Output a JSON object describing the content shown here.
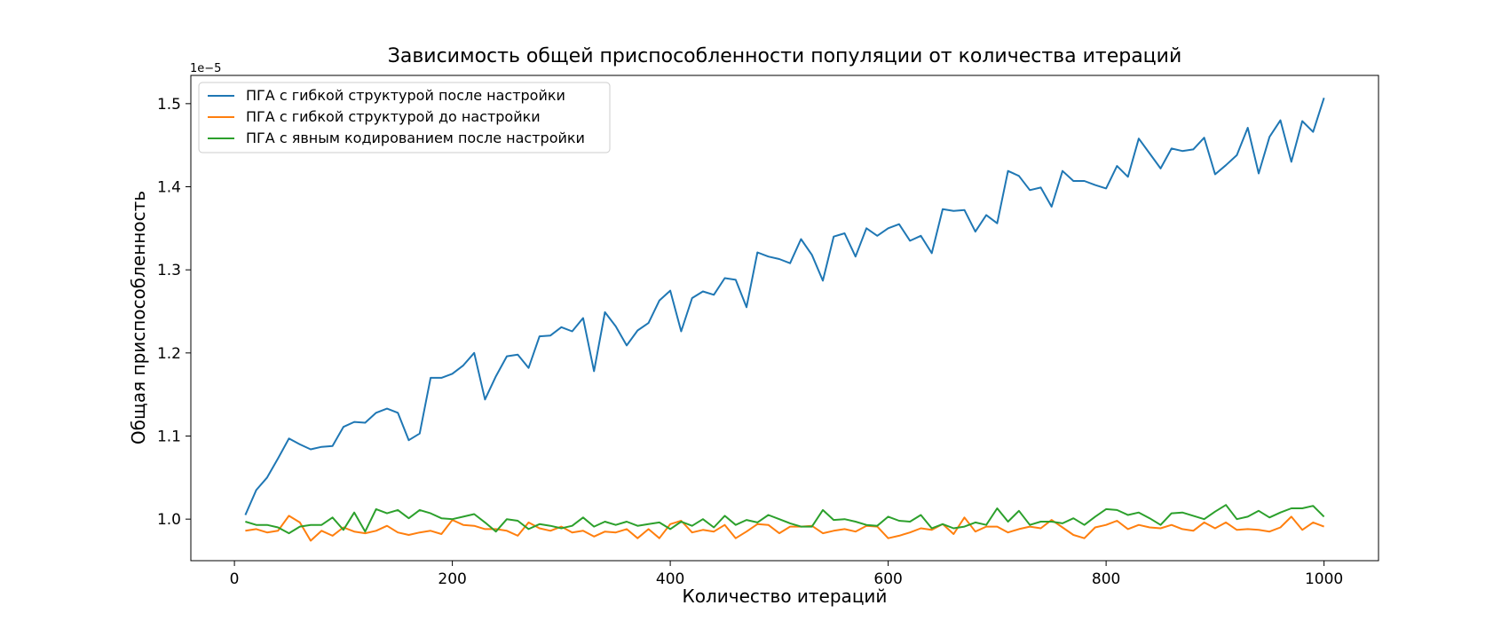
{
  "chart_data": {
    "type": "line",
    "title": "Зависимость общей приспособленности популяции от количества итераций",
    "xlabel": "Количество итераций",
    "ylabel": "Общая приспособленность",
    "y_offset_label": "1e−5",
    "y_scale": 1e-05,
    "xlim": [
      -40,
      1050
    ],
    "ylim": [
      0.95,
      1.534
    ],
    "xticks": [
      0,
      200,
      400,
      600,
      800,
      1000
    ],
    "xtick_labels": [
      "0",
      "200",
      "400",
      "600",
      "800",
      "1000"
    ],
    "yticks": [
      1.0,
      1.1,
      1.2,
      1.3,
      1.4,
      1.5
    ],
    "ytick_labels": [
      "1.0",
      "1.1",
      "1.2",
      "1.3",
      "1.4",
      "1.5"
    ],
    "grid": false,
    "legend_position": "upper-left",
    "x": [
      10,
      20,
      30,
      40,
      50,
      60,
      70,
      80,
      90,
      100,
      110,
      120,
      130,
      140,
      150,
      160,
      170,
      180,
      190,
      200,
      210,
      220,
      230,
      240,
      250,
      260,
      270,
      280,
      290,
      300,
      310,
      320,
      330,
      340,
      350,
      360,
      370,
      380,
      390,
      400,
      410,
      420,
      430,
      440,
      450,
      460,
      470,
      480,
      490,
      500,
      510,
      520,
      530,
      540,
      550,
      560,
      570,
      580,
      590,
      600,
      610,
      620,
      630,
      640,
      650,
      660,
      670,
      680,
      690,
      700,
      710,
      720,
      730,
      740,
      750,
      760,
      770,
      780,
      790,
      800,
      810,
      820,
      830,
      840,
      850,
      860,
      870,
      880,
      890,
      900,
      910,
      920,
      930,
      940,
      950,
      960,
      970,
      980,
      990,
      1000
    ],
    "series": [
      {
        "name": "ПГА с гибкой структурой после настройки",
        "color": "#1f77b4",
        "values": [
          1.005,
          1.035,
          1.05,
          1.073,
          1.097,
          1.09,
          1.084,
          1.087,
          1.088,
          1.111,
          1.117,
          1.116,
          1.128,
          1.133,
          1.128,
          1.095,
          1.103,
          1.17,
          1.17,
          1.175,
          1.185,
          1.2,
          1.144,
          1.172,
          1.196,
          1.198,
          1.182,
          1.22,
          1.221,
          1.231,
          1.226,
          1.242,
          1.178,
          1.249,
          1.232,
          1.209,
          1.227,
          1.236,
          1.263,
          1.275,
          1.226,
          1.266,
          1.274,
          1.27,
          1.29,
          1.288,
          1.255,
          1.321,
          1.316,
          1.313,
          1.308,
          1.337,
          1.318,
          1.287,
          1.34,
          1.344,
          1.316,
          1.35,
          1.341,
          1.35,
          1.355,
          1.335,
          1.341,
          1.32,
          1.373,
          1.371,
          1.372,
          1.346,
          1.366,
          1.356,
          1.419,
          1.413,
          1.396,
          1.399,
          1.376,
          1.419,
          1.407,
          1.407,
          1.402,
          1.398,
          1.425,
          1.412,
          1.458,
          1.44,
          1.422,
          1.446,
          1.443,
          1.445,
          1.459,
          1.415,
          1.426,
          1.438,
          1.471,
          1.416,
          1.46,
          1.48,
          1.43,
          1.479,
          1.466,
          1.507
        ]
      },
      {
        "name": "ПГА с гибкой структурой до настройки",
        "color": "#ff7f0e",
        "values": [
          0.986,
          0.988,
          0.984,
          0.986,
          1.004,
          0.996,
          0.974,
          0.986,
          0.98,
          0.99,
          0.985,
          0.983,
          0.986,
          0.992,
          0.984,
          0.981,
          0.984,
          0.986,
          0.982,
          0.999,
          0.993,
          0.992,
          0.988,
          0.988,
          0.986,
          0.98,
          0.996,
          0.989,
          0.986,
          0.991,
          0.984,
          0.986,
          0.979,
          0.985,
          0.984,
          0.988,
          0.977,
          0.988,
          0.977,
          0.994,
          0.998,
          0.984,
          0.987,
          0.985,
          0.993,
          0.977,
          0.985,
          0.994,
          0.993,
          0.983,
          0.991,
          0.991,
          0.992,
          0.983,
          0.986,
          0.988,
          0.985,
          0.992,
          0.991,
          0.977,
          0.98,
          0.984,
          0.989,
          0.987,
          0.994,
          0.982,
          1.002,
          0.985,
          0.991,
          0.991,
          0.984,
          0.988,
          0.991,
          0.989,
          0.999,
          0.99,
          0.981,
          0.977,
          0.99,
          0.993,
          0.998,
          0.988,
          0.993,
          0.99,
          0.989,
          0.993,
          0.988,
          0.986,
          0.996,
          0.989,
          0.996,
          0.987,
          0.988,
          0.987,
          0.985,
          0.99,
          1.003,
          0.987,
          0.996,
          0.991
        ]
      },
      {
        "name": "ПГА с явным кодированием после настройки",
        "color": "#2ca02c",
        "values": [
          0.997,
          0.993,
          0.993,
          0.99,
          0.983,
          0.991,
          0.993,
          0.993,
          1.002,
          0.987,
          1.008,
          0.985,
          1.012,
          1.007,
          1.011,
          1.001,
          1.011,
          1.007,
          1.001,
          1.0,
          1.003,
          1.006,
          0.996,
          0.985,
          1.0,
          0.998,
          0.988,
          0.994,
          0.992,
          0.989,
          0.992,
          1.002,
          0.991,
          0.997,
          0.993,
          0.997,
          0.992,
          0.994,
          0.996,
          0.988,
          0.997,
          0.992,
          1.0,
          0.99,
          1.004,
          0.993,
          0.999,
          0.996,
          1.005,
          1.0,
          0.995,
          0.991,
          0.991,
          1.011,
          0.999,
          1.0,
          0.997,
          0.993,
          0.992,
          1.003,
          0.998,
          0.997,
          1.005,
          0.989,
          0.994,
          0.989,
          0.991,
          0.996,
          0.993,
          1.013,
          0.997,
          1.01,
          0.993,
          0.997,
          0.997,
          0.995,
          1.001,
          0.993,
          1.003,
          1.012,
          1.011,
          1.005,
          1.008,
          1.001,
          0.993,
          1.007,
          1.008,
          1.004,
          1.0,
          1.009,
          1.017,
          1.0,
          1.003,
          1.01,
          1.002,
          1.008,
          1.013,
          1.013,
          1.016,
          1.003
        ]
      }
    ]
  }
}
